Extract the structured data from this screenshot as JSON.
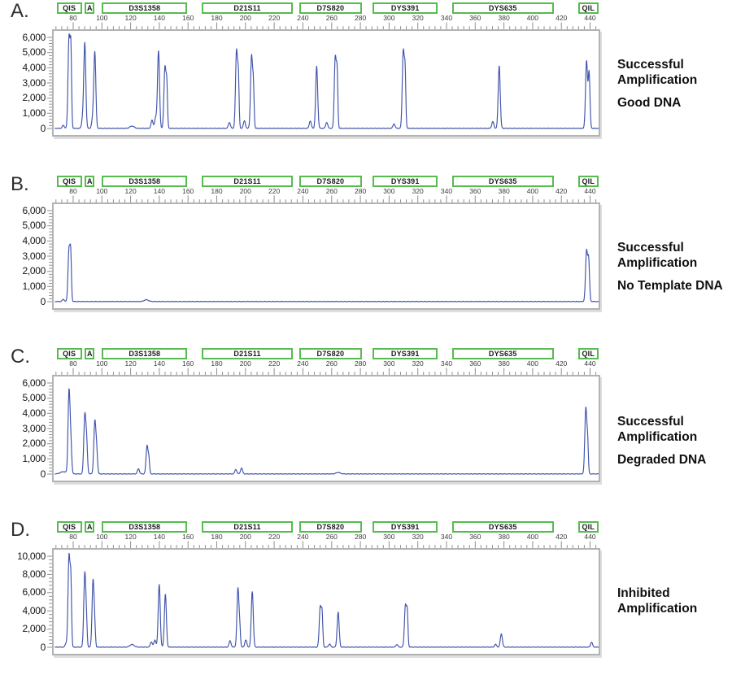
{
  "colors": {
    "trace": "#4053ab",
    "marker_box_border": "#57bb4f",
    "plot_border": "#b3b3b3",
    "tick": "#8f8f8f",
    "text": "#1a1a1a"
  },
  "shared": {
    "x_tick_labels": [
      "80",
      "100",
      "120",
      "140",
      "160",
      "180",
      "200",
      "220",
      "240",
      "260",
      "280",
      "300",
      "320",
      "340",
      "360",
      "380",
      "400",
      "420",
      "440"
    ],
    "marker_header": [
      {
        "name": "QIS",
        "bp_start": 68.5,
        "bp_end": 86
      },
      {
        "name": "A",
        "bp_start": 88,
        "bp_end": 95
      },
      {
        "name": "D3S1358",
        "bp_start": 100,
        "bp_end": 159.5
      },
      {
        "name": "D21S11",
        "bp_start": 169.5,
        "bp_end": 233
      },
      {
        "name": "D7S820",
        "bp_start": 237.5,
        "bp_end": 281
      },
      {
        "name": "DYS391",
        "bp_start": 288.5,
        "bp_end": 334
      },
      {
        "name": "DYS635",
        "bp_start": 344,
        "bp_end": 414.5
      },
      {
        "name": "QIL",
        "bp_start": 431.5,
        "bp_end": 446
      }
    ]
  },
  "chart_data": [
    {
      "type": "line",
      "panel_label": "A.",
      "annotation": {
        "lines": [
          "Successful",
          "Amplification"
        ],
        "sublabel": "Good DNA"
      },
      "x_axis": {
        "range_bp": [
          66,
          446
        ],
        "tick_step": 20
      },
      "y_axis": {
        "max": 6000,
        "tick_step": 1000,
        "tick_labels": [
          "0",
          "1,000",
          "2,000",
          "3,000",
          "4,000",
          "5,000",
          "6,000"
        ]
      },
      "peaks": [
        {
          "bp": 72,
          "rfu": 200
        },
        {
          "bp": 76,
          "rfu": 6150
        },
        {
          "bp": 77.3,
          "rfu": 4800,
          "w": 0.5
        },
        {
          "bp": 85.5,
          "rfu": 600
        },
        {
          "bp": 87,
          "rfu": 5700
        },
        {
          "bp": 92.5,
          "rfu": 600
        },
        {
          "bp": 94,
          "rfu": 5100
        },
        {
          "bp": 120,
          "rfu": 150,
          "w": 1.5
        },
        {
          "bp": 134,
          "rfu": 550
        },
        {
          "bp": 136.5,
          "rfu": 700
        },
        {
          "bp": 138.5,
          "rfu": 5200
        },
        {
          "bp": 143,
          "rfu": 4100
        },
        {
          "bp": 144.3,
          "rfu": 2700,
          "w": 0.5
        },
        {
          "bp": 188,
          "rfu": 400
        },
        {
          "bp": 193,
          "rfu": 5200
        },
        {
          "bp": 194.3,
          "rfu": 3100,
          "w": 0.5
        },
        {
          "bp": 198.5,
          "rfu": 500
        },
        {
          "bp": 203.5,
          "rfu": 4850
        },
        {
          "bp": 204.8,
          "rfu": 2500,
          "w": 0.5
        },
        {
          "bp": 244.5,
          "rfu": 500
        },
        {
          "bp": 249,
          "rfu": 4150
        },
        {
          "bp": 256,
          "rfu": 400
        },
        {
          "bp": 262,
          "rfu": 4800
        },
        {
          "bp": 263.3,
          "rfu": 3300,
          "w": 0.5
        },
        {
          "bp": 303,
          "rfu": 300
        },
        {
          "bp": 309.5,
          "rfu": 5200
        },
        {
          "bp": 310.8,
          "rfu": 3400,
          "w": 0.5
        },
        {
          "bp": 372,
          "rfu": 450
        },
        {
          "bp": 376.5,
          "rfu": 4200
        },
        {
          "bp": 437.5,
          "rfu": 4500
        },
        {
          "bp": 439.3,
          "rfu": 3700,
          "w": 0.6
        }
      ]
    },
    {
      "type": "line",
      "panel_label": "B.",
      "annotation": {
        "lines": [
          "Successful",
          "Amplification"
        ],
        "sublabel": "No Template DNA"
      },
      "x_axis": {
        "range_bp": [
          66,
          446
        ],
        "tick_step": 20
      },
      "y_axis": {
        "max": 6000,
        "tick_step": 1000,
        "tick_labels": [
          "0",
          "1,000",
          "2,000",
          "3,000",
          "4,000",
          "5,000",
          "6,000"
        ]
      },
      "peaks": [
        {
          "bp": 72,
          "rfu": 150
        },
        {
          "bp": 76,
          "rfu": 3550
        },
        {
          "bp": 77.2,
          "rfu": 2750,
          "w": 0.5
        },
        {
          "bp": 130,
          "rfu": 120,
          "w": 1.5
        },
        {
          "bp": 437.5,
          "rfu": 3350
        },
        {
          "bp": 439,
          "rfu": 2700,
          "w": 0.6
        }
      ]
    },
    {
      "type": "line",
      "panel_label": "C.",
      "annotation": {
        "lines": [
          "Successful",
          "Amplification"
        ],
        "sublabel": "Degraded DNA"
      },
      "x_axis": {
        "range_bp": [
          66,
          446
        ],
        "tick_step": 20
      },
      "y_axis": {
        "max": 6000,
        "tick_step": 1000,
        "tick_labels": [
          "0",
          "1,000",
          "2,000",
          "3,000",
          "4,000",
          "5,000",
          "6,000"
        ]
      },
      "peaks": [
        {
          "bp": 72,
          "rfu": 150,
          "w": 2
        },
        {
          "bp": 76,
          "rfu": 5500
        },
        {
          "bp": 77.3,
          "rfu": 1800,
          "w": 0.6
        },
        {
          "bp": 87,
          "rfu": 3900
        },
        {
          "bp": 88.3,
          "rfu": 2000,
          "w": 0.6
        },
        {
          "bp": 94,
          "rfu": 3450
        },
        {
          "bp": 95.3,
          "rfu": 1500,
          "w": 0.6
        },
        {
          "bp": 124.5,
          "rfu": 350
        },
        {
          "bp": 130.5,
          "rfu": 1900
        },
        {
          "bp": 131.8,
          "rfu": 900,
          "w": 0.5
        },
        {
          "bp": 192.5,
          "rfu": 300
        },
        {
          "bp": 196.5,
          "rfu": 400
        },
        {
          "bp": 264,
          "rfu": 100,
          "w": 1.5
        },
        {
          "bp": 437,
          "rfu": 4400
        },
        {
          "bp": 438.3,
          "rfu": 1900,
          "w": 0.5
        }
      ]
    },
    {
      "type": "line",
      "panel_label": "D.",
      "annotation": {
        "lines": [
          "Inhibited",
          "Amplification"
        ],
        "sublabel": null
      },
      "x_axis": {
        "range_bp": [
          66,
          446
        ],
        "tick_step": 20
      },
      "y_axis": {
        "max": 10000,
        "tick_step": 2000,
        "tick_labels": [
          "0",
          "2,000",
          "4,000",
          "6,000",
          "8,000",
          "10,000"
        ]
      },
      "peaks": [
        {
          "bp": 74,
          "rfu": 400
        },
        {
          "bp": 76,
          "rfu": 10200
        },
        {
          "bp": 77.3,
          "rfu": 6600,
          "w": 0.5
        },
        {
          "bp": 87,
          "rfu": 8300
        },
        {
          "bp": 88.2,
          "rfu": 2300,
          "w": 0.5
        },
        {
          "bp": 92.8,
          "rfu": 7500
        },
        {
          "bp": 94,
          "rfu": 1700,
          "w": 0.5
        },
        {
          "bp": 120,
          "rfu": 300,
          "w": 1.5
        },
        {
          "bp": 133.5,
          "rfu": 600
        },
        {
          "bp": 136,
          "rfu": 800
        },
        {
          "bp": 139,
          "rfu": 7000
        },
        {
          "bp": 143.3,
          "rfu": 5900
        },
        {
          "bp": 188.5,
          "rfu": 700
        },
        {
          "bp": 194,
          "rfu": 6550
        },
        {
          "bp": 195.3,
          "rfu": 1800,
          "w": 0.5
        },
        {
          "bp": 199.5,
          "rfu": 800
        },
        {
          "bp": 204,
          "rfu": 6200
        },
        {
          "bp": 251.5,
          "rfu": 4550
        },
        {
          "bp": 252.8,
          "rfu": 3400,
          "w": 0.5
        },
        {
          "bp": 258,
          "rfu": 350
        },
        {
          "bp": 264,
          "rfu": 3900
        },
        {
          "bp": 305,
          "rfu": 300
        },
        {
          "bp": 311,
          "rfu": 4700
        },
        {
          "bp": 312.3,
          "rfu": 3500,
          "w": 0.5
        },
        {
          "bp": 374,
          "rfu": 300
        },
        {
          "bp": 378,
          "rfu": 1500
        },
        {
          "bp": 441,
          "rfu": 550
        }
      ]
    }
  ]
}
